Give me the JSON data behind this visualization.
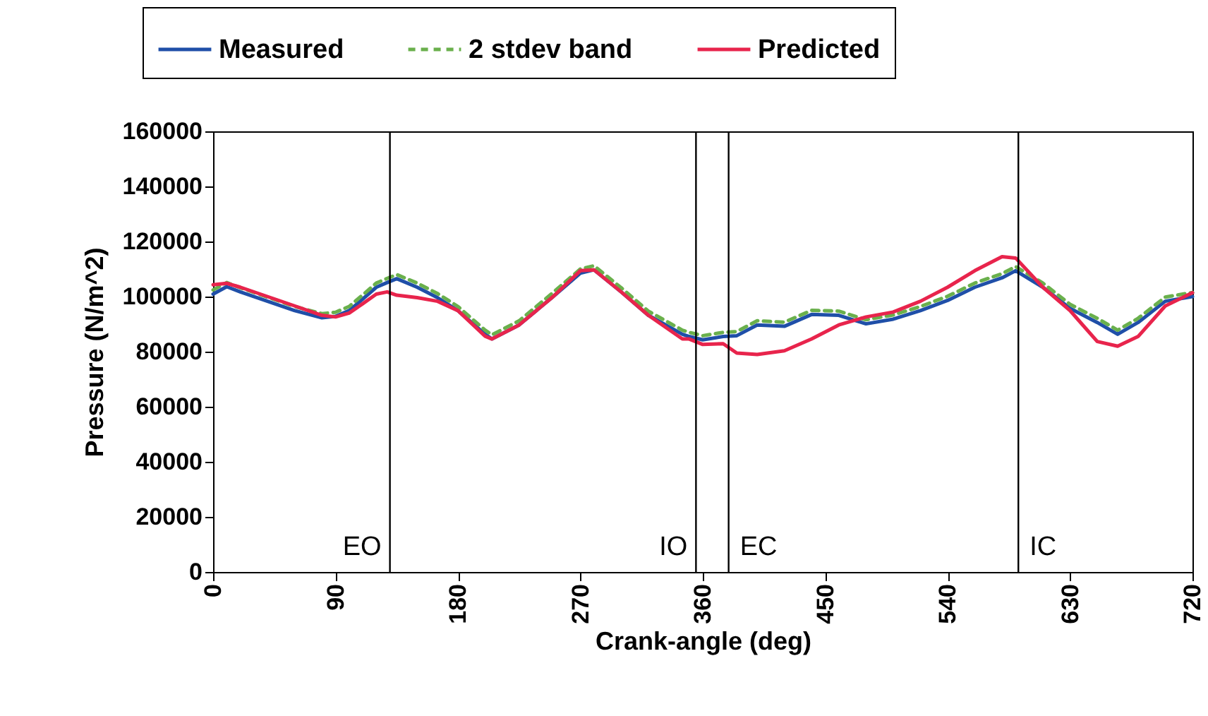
{
  "chart_data": {
    "type": "line",
    "xlabel": "Crank-angle (deg)",
    "ylabel": "Pressure (N/m^2)",
    "xlim": [
      0,
      720
    ],
    "xticks": [
      0,
      90,
      180,
      270,
      360,
      450,
      540,
      630,
      720
    ],
    "ylim": [
      0,
      160000
    ],
    "yticks": [
      0,
      20000,
      40000,
      60000,
      80000,
      100000,
      120000,
      140000,
      160000
    ],
    "grid": false,
    "legend": "top",
    "marker": "none",
    "series": [
      {
        "name": "Measured",
        "color": "#1f4fa8",
        "line_style": "solid",
        "x": [
          0,
          10,
          20,
          40,
          60,
          80,
          90,
          100,
          110,
          120,
          128,
          135,
          150,
          165,
          180,
          200,
          205,
          225,
          250,
          270,
          280,
          300,
          320,
          345,
          350,
          360,
          375,
          385,
          400,
          420,
          440,
          460,
          480,
          500,
          520,
          540,
          560,
          580,
          590,
          610,
          630,
          650,
          665,
          680,
          700,
          720
        ],
        "values": [
          100900,
          103600,
          101700,
          98300,
          94900,
          92300,
          92800,
          94900,
          99100,
          103400,
          105100,
          106500,
          103400,
          99600,
          94900,
          86300,
          84600,
          89700,
          100000,
          108500,
          109700,
          101700,
          93200,
          86300,
          85500,
          84300,
          85500,
          85800,
          89700,
          89200,
          93500,
          93200,
          90100,
          91800,
          94900,
          98600,
          103400,
          106800,
          109400,
          103400,
          95700,
          90600,
          86300,
          90600,
          98300,
          100000
        ]
      },
      {
        "name": "2 stdev band",
        "color": "#6ab04c",
        "line_style": "dashed",
        "x": [
          0,
          10,
          20,
          40,
          60,
          80,
          90,
          100,
          110,
          120,
          128,
          135,
          150,
          165,
          180,
          200,
          205,
          225,
          250,
          270,
          280,
          300,
          320,
          345,
          350,
          360,
          375,
          385,
          400,
          420,
          440,
          460,
          480,
          500,
          520,
          540,
          560,
          580,
          590,
          610,
          630,
          650,
          665,
          680,
          700,
          720
        ],
        "values": [
          102400,
          105100,
          103200,
          99800,
          96400,
          93800,
          94300,
          96400,
          100600,
          104900,
          106600,
          108000,
          104900,
          101100,
          96400,
          87800,
          86100,
          91200,
          101500,
          110000,
          111200,
          103200,
          94700,
          87800,
          87000,
          85800,
          87000,
          87300,
          91200,
          90700,
          95000,
          94700,
          91600,
          93300,
          96400,
          100100,
          104900,
          108300,
          110900,
          104900,
          97200,
          92100,
          87800,
          92100,
          99800,
          101500
        ]
      },
      {
        "name": "Predicted",
        "color": "#e8244c",
        "line_style": "solid",
        "x": [
          0,
          10,
          20,
          40,
          60,
          80,
          90,
          100,
          110,
          120,
          128,
          135,
          150,
          165,
          180,
          200,
          205,
          225,
          250,
          270,
          280,
          300,
          320,
          345,
          350,
          360,
          375,
          385,
          400,
          420,
          440,
          460,
          480,
          500,
          520,
          540,
          560,
          580,
          590,
          610,
          630,
          650,
          665,
          680,
          700,
          720
        ],
        "values": [
          104300,
          104800,
          103400,
          100000,
          96600,
          93200,
          92600,
          94000,
          97400,
          100900,
          101700,
          100500,
          99600,
          98300,
          94900,
          85600,
          84600,
          89700,
          100000,
          109400,
          109700,
          101700,
          93200,
          84600,
          84600,
          82600,
          82900,
          79500,
          79000,
          80300,
          84600,
          89700,
          92600,
          94400,
          98300,
          103400,
          109400,
          114500,
          114000,
          103400,
          94900,
          83700,
          82000,
          85500,
          96600,
          101400
        ]
      }
    ],
    "ref_lines": [
      {
        "axis": "x",
        "value": 130,
        "label": "EO"
      },
      {
        "axis": "x",
        "value": 355,
        "label": "IO"
      },
      {
        "axis": "x",
        "value": 379,
        "label": "EC"
      },
      {
        "axis": "x",
        "value": 592,
        "label": "IC"
      }
    ]
  }
}
